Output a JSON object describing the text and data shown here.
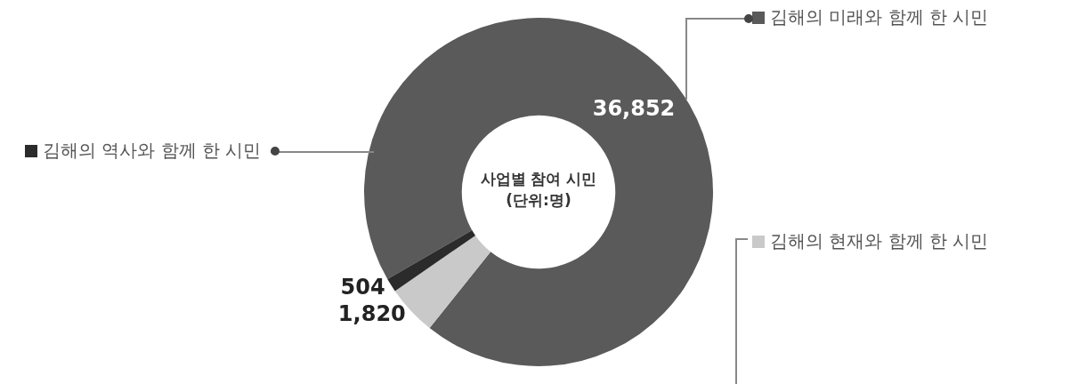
{
  "chart_data": {
    "type": "donut",
    "title": "사업별 참여 시민",
    "subtitle": "(단위:명)",
    "categories": [
      "김해의 미래와 함께 한 시민",
      "김해의 현재와 함께 한 시민",
      "김해의 역사와 함께 한 시민"
    ],
    "values": [
      36852,
      1820,
      504
    ],
    "colors": [
      "#5a5a5a",
      "#c9c9c9",
      "#2b2b2b"
    ],
    "value_labels": [
      "36,852",
      "1,820",
      "504"
    ],
    "legend": "top left"
  }
}
